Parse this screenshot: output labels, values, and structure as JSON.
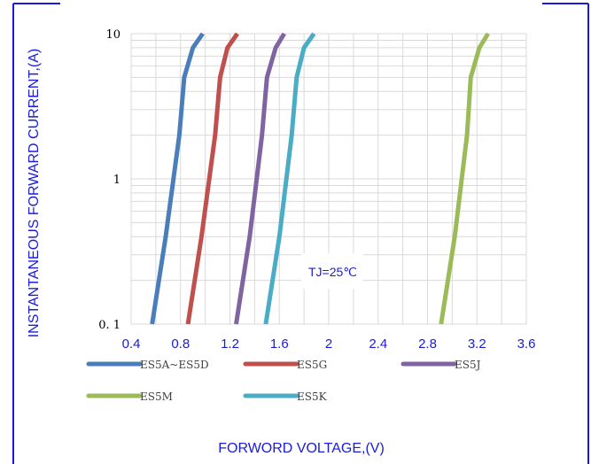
{
  "chart_data": {
    "type": "line",
    "title": "",
    "xlabel": "FORWORD VOLTAGE,(V)",
    "ylabel": "INSTANTANEOUS FORWARD CURRENT,(A)",
    "xlim": [
      0.4,
      3.6
    ],
    "ylim": [
      0.1,
      10
    ],
    "y_scale": "log",
    "x_ticks": [
      "0.4",
      "0.8",
      "1.2",
      "1.6",
      "2",
      "2.4",
      "2.8",
      "3.2",
      "3.6"
    ],
    "y_ticks": [
      "0. 1",
      "1",
      "10"
    ],
    "grid": true,
    "legend_position": "bottom",
    "annotation": "TJ=25℃",
    "series": [
      {
        "name": "ES5A~ES5D",
        "color": "#4a7ebb",
        "x": [
          0.57,
          0.68,
          0.79,
          0.83,
          0.9,
          0.98
        ],
        "y": [
          0.1,
          0.4,
          2.0,
          5.0,
          8.0,
          10
        ]
      },
      {
        "name": "ES5G",
        "color": "#c0504d",
        "x": [
          0.86,
          0.97,
          1.08,
          1.12,
          1.18,
          1.26
        ],
        "y": [
          0.1,
          0.4,
          2.0,
          5.0,
          8.0,
          10
        ]
      },
      {
        "name": "ES5J",
        "color": "#8064a2",
        "x": [
          1.25,
          1.36,
          1.46,
          1.5,
          1.57,
          1.64
        ],
        "y": [
          0.1,
          0.4,
          2.0,
          5.0,
          8.0,
          10
        ]
      },
      {
        "name": "ES5M",
        "color": "#9bbb59",
        "x": [
          2.91,
          3.02,
          3.12,
          3.15,
          3.22,
          3.29
        ],
        "y": [
          0.1,
          0.4,
          2.0,
          5.0,
          8.0,
          10
        ]
      },
      {
        "name": "ES5K",
        "color": "#4bacc6",
        "x": [
          1.49,
          1.6,
          1.7,
          1.74,
          1.8,
          1.88
        ],
        "y": [
          0.1,
          0.4,
          2.0,
          5.0,
          8.0,
          10
        ]
      }
    ]
  }
}
